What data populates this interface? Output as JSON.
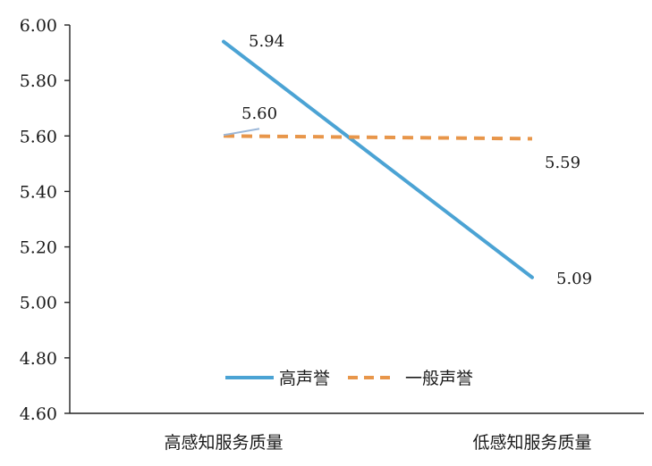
{
  "chart_data": {
    "type": "line",
    "categories": [
      "高感知服务质量",
      "低感知服务质量"
    ],
    "ylim": [
      4.6,
      6.0
    ],
    "yticks": [
      "6.00",
      "5.80",
      "5.60",
      "5.40",
      "5.20",
      "5.00",
      "4.80",
      "4.60"
    ],
    "grid": false,
    "legend_position": "bottom-center",
    "series": [
      {
        "name": "高声誉",
        "values": [
          5.94,
          5.09
        ],
        "labels": [
          "5.94",
          "5.09"
        ],
        "color": "#4ba3d4",
        "style": "solid"
      },
      {
        "name": "一般声誉",
        "values": [
          5.6,
          5.59
        ],
        "labels": [
          "5.60",
          "5.59"
        ],
        "color": "#e8964a",
        "style": "dashed"
      }
    ],
    "title": "",
    "xlabel": "",
    "ylabel": ""
  }
}
